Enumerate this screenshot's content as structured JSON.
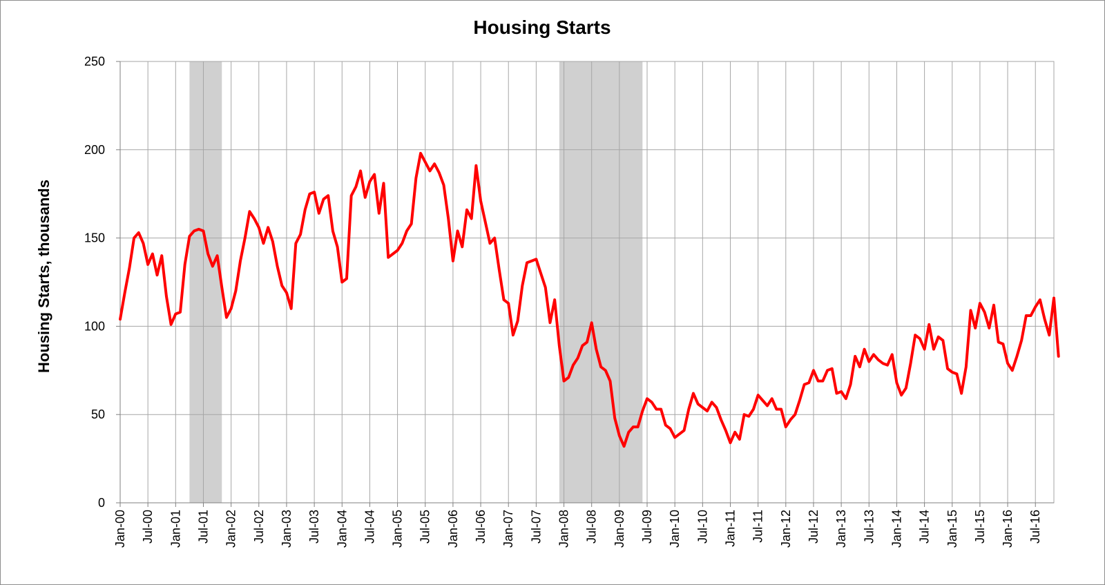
{
  "chart_data": {
    "type": "line",
    "title": "Housing Starts",
    "xlabel": "",
    "ylabel": "Housing Starts, thousands",
    "ylim": [
      0,
      250
    ],
    "yticks": [
      0,
      50,
      100,
      150,
      200,
      250
    ],
    "x_start": "Jan-00",
    "x_end": "Nov-16",
    "x_tick_labels": [
      "Jan-00",
      "Jul-00",
      "Jan-01",
      "Jul-01",
      "Jan-02",
      "Jul-02",
      "Jan-03",
      "Jul-03",
      "Jan-04",
      "Jul-04",
      "Jan-05",
      "Jul-05",
      "Jan-06",
      "Jul-06",
      "Jan-07",
      "Jul-07",
      "Jan-08",
      "Jul-08",
      "Jan-09",
      "Jul-09",
      "Jan-10",
      "Jul-10",
      "Jan-11",
      "Jul-11",
      "Jan-12",
      "Jul-12",
      "Jan-13",
      "Jul-13",
      "Jan-14",
      "Jul-14",
      "Jan-15",
      "Jul-15",
      "Jan-16",
      "Jul-16"
    ],
    "grid": true,
    "legend": "none",
    "recession_shading": [
      {
        "start": "Apr-01",
        "end": "Nov-01"
      },
      {
        "start": "Dec-07",
        "end": "Jun-09"
      }
    ],
    "recession_color": "#d0d0d0",
    "series": [
      {
        "color": "#ff0000",
        "values": [
          104,
          119,
          133,
          150,
          153,
          147,
          135,
          141,
          129,
          140,
          117,
          101,
          107,
          108,
          135,
          151,
          154,
          155,
          154,
          141,
          134,
          140,
          122,
          105,
          110,
          120,
          137,
          150,
          165,
          161,
          156,
          147,
          156,
          148,
          134,
          123,
          119,
          110,
          147,
          152,
          166,
          175,
          176,
          164,
          172,
          174,
          154,
          145,
          125,
          127,
          174,
          179,
          188,
          173,
          182,
          186,
          164,
          181,
          139,
          141,
          143,
          147,
          154,
          158,
          184,
          198,
          193,
          188,
          192,
          187,
          180,
          161,
          137,
          154,
          145,
          166,
          161,
          191,
          171,
          159,
          147,
          150,
          132,
          115,
          113,
          95,
          103,
          123,
          136,
          137,
          138,
          130,
          122,
          102,
          115,
          89,
          69,
          71,
          78,
          82,
          89,
          91,
          102,
          87,
          77,
          75,
          69,
          48,
          38,
          32,
          40,
          43,
          43,
          52,
          59,
          57,
          53,
          53,
          44,
          42,
          37,
          39,
          41,
          53,
          62,
          56,
          54,
          52,
          57,
          54,
          47,
          41,
          34,
          40,
          36,
          50,
          49,
          53,
          61,
          58,
          55,
          59,
          53,
          53,
          43,
          47,
          50,
          58,
          67,
          68,
          75,
          69,
          69,
          75,
          76,
          62,
          63,
          59,
          67,
          83,
          77,
          87,
          80,
          84,
          81,
          79,
          78,
          84,
          68,
          61,
          65,
          79,
          95,
          93,
          87,
          101,
          87,
          94,
          92,
          76,
          74,
          73,
          62,
          77,
          109,
          99,
          113,
          108,
          99,
          112,
          91,
          90,
          79,
          75,
          83,
          92,
          106,
          106,
          111,
          115,
          104,
          95,
          116,
          83
        ]
      }
    ]
  }
}
